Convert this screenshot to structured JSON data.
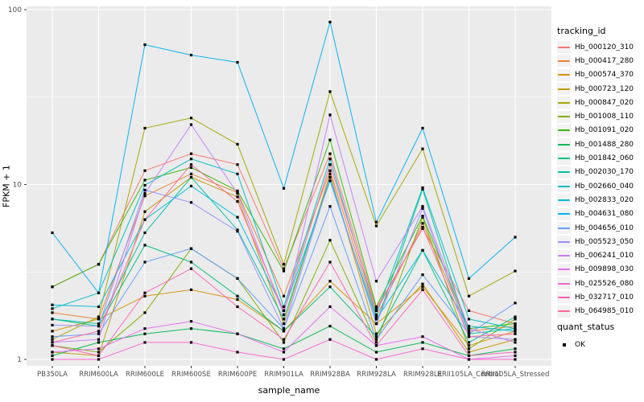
{
  "figure": {
    "panel_bg": "#EBEBEB",
    "grid_color": "#FFFFFF",
    "axis_text_color": "#4D4D4D",
    "point_color": "#000000",
    "legend_key_bg": "#F2F2F2"
  },
  "chart_data": {
    "type": "line",
    "title": "",
    "xlabel": "sample_name",
    "ylabel": "FPKM + 1",
    "y_scale": "log10",
    "ylim": [
      0.92,
      105
    ],
    "y_ticks": [
      1,
      10,
      100
    ],
    "y_minor_ticks": [
      3.1623,
      31.623
    ],
    "grid": true,
    "point_marker": "black-square",
    "categories": [
      "PB350LA",
      "RRIM600LA",
      "RRIM600LE",
      "RRIM600SE",
      "RRIM600PE",
      "RRIM901LA",
      "RRIM928BA",
      "RRIM928LA",
      "RRIM928LE",
      "RRII105LA_Control",
      "RRII105LA_Stressed"
    ],
    "legend": {
      "title": "tracking_id",
      "position": "right"
    },
    "quant_legend": {
      "title": "quant_status",
      "items": [
        {
          "label": "OK",
          "marker": "black-square"
        }
      ]
    },
    "series": [
      {
        "name": "Hb_000120_310",
        "color": "#F8766D",
        "values": [
          2.6,
          3.5,
          12.0,
          15.0,
          13.0,
          3.3,
          15.0,
          1.95,
          5.6,
          1.9,
          1.6
        ]
      },
      {
        "name": "Hb_000417_280",
        "color": "#EA8331",
        "values": [
          1.85,
          1.7,
          8.6,
          11.5,
          9.0,
          2.3,
          12.0,
          1.75,
          6.0,
          1.45,
          1.55
        ]
      },
      {
        "name": "Hb_000574_370",
        "color": "#D89000",
        "values": [
          1.45,
          1.7,
          2.3,
          2.5,
          2.2,
          1.45,
          2.8,
          1.6,
          2.6,
          1.2,
          1.45
        ]
      },
      {
        "name": "Hb_000723_120",
        "color": "#C09B00",
        "values": [
          1.1,
          1.05,
          7.0,
          11.0,
          8.5,
          1.6,
          11.5,
          1.4,
          2.7,
          1.1,
          1.3
        ]
      },
      {
        "name": "Hb_000847_020",
        "color": "#A3A500",
        "values": [
          1.3,
          1.75,
          21.0,
          24.0,
          17.0,
          3.5,
          34.0,
          5.8,
          16.0,
          2.3,
          3.2
        ]
      },
      {
        "name": "Hb_001008_110",
        "color": "#7CAE00",
        "values": [
          1.2,
          1.1,
          1.85,
          4.3,
          2.9,
          1.25,
          4.8,
          1.25,
          6.5,
          1.15,
          1.7
        ]
      },
      {
        "name": "Hb_001091_020",
        "color": "#39B600",
        "values": [
          2.6,
          3.5,
          10.6,
          12.5,
          9.2,
          3.2,
          18.0,
          2.0,
          6.6,
          1.5,
          1.6
        ]
      },
      {
        "name": "Hb_001488_280",
        "color": "#00BB4E",
        "values": [
          1.05,
          1.25,
          1.4,
          1.5,
          1.4,
          1.15,
          1.55,
          1.1,
          1.25,
          1.05,
          1.15
        ]
      },
      {
        "name": "Hb_001842_060",
        "color": "#00BF7D",
        "values": [
          1.7,
          1.55,
          4.5,
          3.6,
          2.3,
          1.45,
          2.6,
          1.35,
          4.2,
          1.25,
          1.75
        ]
      },
      {
        "name": "Hb_002030_170",
        "color": "#00C1A3",
        "values": [
          1.7,
          1.6,
          5.3,
          11.0,
          5.5,
          1.7,
          11.0,
          1.6,
          9.4,
          1.4,
          1.5
        ]
      },
      {
        "name": "Hb_002660_040",
        "color": "#00BFC4",
        "values": [
          1.95,
          2.4,
          9.9,
          14.0,
          11.5,
          2.0,
          14.0,
          1.8,
          9.6,
          1.7,
          1.5
        ]
      },
      {
        "name": "Hb_002833_020",
        "color": "#00BADE",
        "values": [
          2.05,
          2.0,
          6.3,
          9.8,
          6.5,
          1.9,
          10.5,
          1.7,
          4.2,
          1.55,
          1.45
        ]
      },
      {
        "name": "Hb_004631_080",
        "color": "#00B0F6",
        "values": [
          5.3,
          2.4,
          63.0,
          55.0,
          50.0,
          9.5,
          85.0,
          6.1,
          21.0,
          2.9,
          5.0
        ]
      },
      {
        "name": "Hb_004656_010",
        "color": "#619CFF",
        "values": [
          1.35,
          1.4,
          3.6,
          4.3,
          2.9,
          1.5,
          7.5,
          1.3,
          3.05,
          1.4,
          2.1
        ]
      },
      {
        "name": "Hb_005523_050",
        "color": "#9590FF",
        "values": [
          1.57,
          1.55,
          9.3,
          7.9,
          5.4,
          1.5,
          11.0,
          1.6,
          7.3,
          1.35,
          1.3
        ]
      },
      {
        "name": "Hb_006241_010",
        "color": "#C77CFF",
        "values": [
          1.25,
          1.3,
          8.9,
          22.0,
          8.9,
          1.8,
          25.0,
          2.8,
          7.5,
          1.5,
          1.25
        ]
      },
      {
        "name": "Hb_009898_030",
        "color": "#E76BF3",
        "values": [
          1.1,
          1.15,
          1.5,
          1.65,
          1.4,
          1.1,
          2.0,
          1.2,
          1.35,
          1.0,
          1.05
        ]
      },
      {
        "name": "Hb_025526_080",
        "color": "#FD61D1",
        "values": [
          1.0,
          1.0,
          1.25,
          1.25,
          1.1,
          1.0,
          1.3,
          1.0,
          1.15,
          1.0,
          1.0
        ]
      },
      {
        "name": "Hb_032717_010",
        "color": "#FF62BC",
        "values": [
          1.2,
          1.05,
          2.4,
          3.3,
          2.0,
          1.3,
          3.6,
          1.2,
          2.5,
          1.05,
          1.1
        ]
      },
      {
        "name": "Hb_064985_010",
        "color": "#FF6A98",
        "values": [
          1.25,
          1.45,
          6.3,
          13.0,
          8.0,
          1.9,
          13.0,
          1.9,
          5.7,
          1.35,
          1.4
        ]
      }
    ]
  }
}
